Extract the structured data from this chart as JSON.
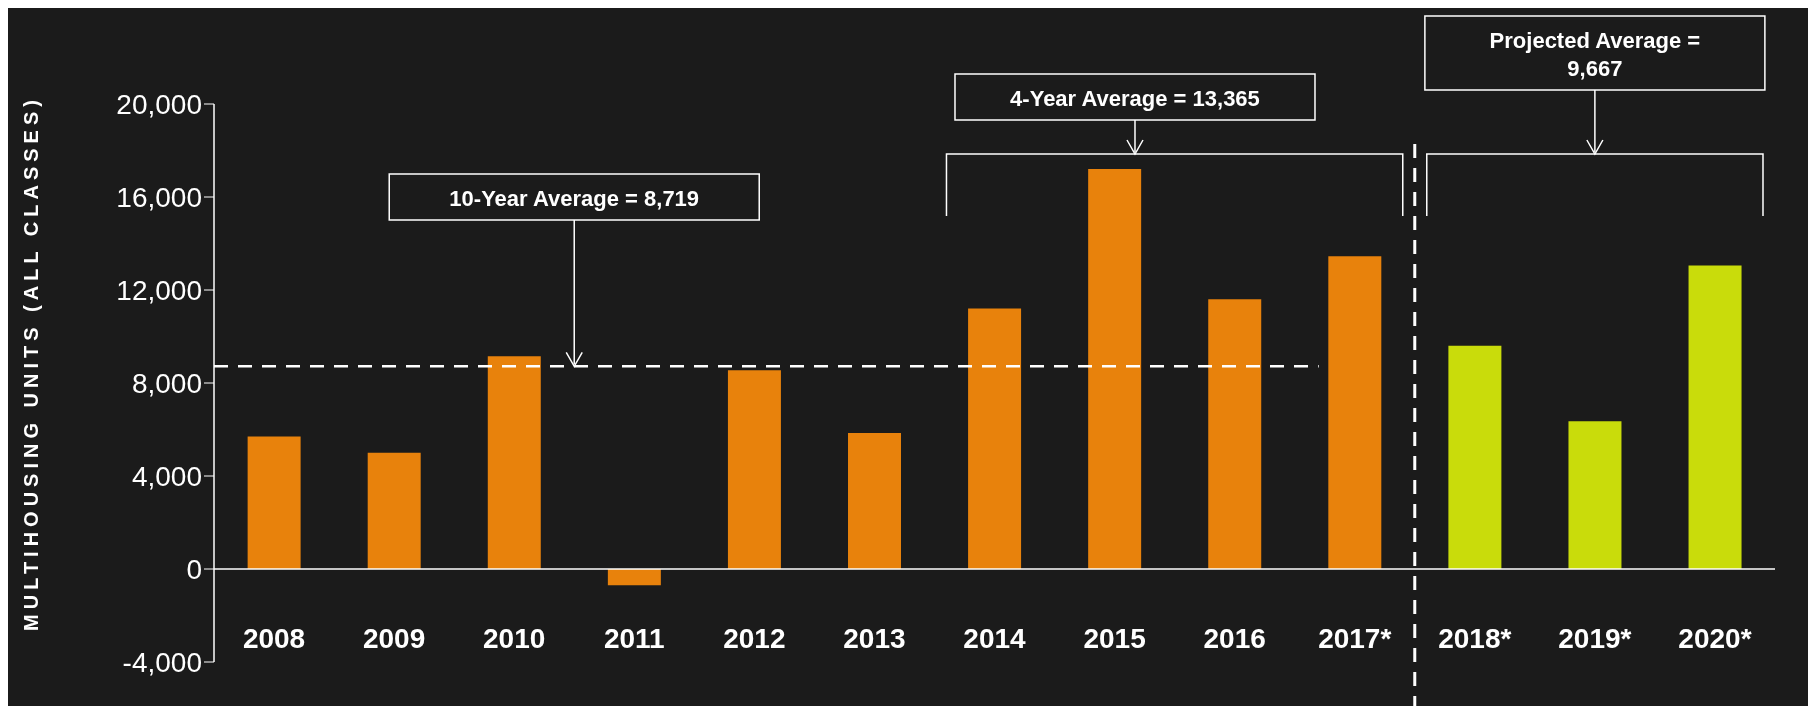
{
  "chart_data": {
    "type": "bar",
    "ylabel": "MULTIHOUSING UNITS (ALL CLASSES)",
    "categories": [
      "2008",
      "2009",
      "2010",
      "2011",
      "2012",
      "2013",
      "2014",
      "2015",
      "2016",
      "2017*",
      "2018*",
      "2019*",
      "2020*"
    ],
    "values": [
      5700,
      5000,
      9150,
      -700,
      8550,
      5850,
      11200,
      17200,
      11600,
      13450,
      9600,
      6350,
      13050
    ],
    "colors": [
      "#e8820c",
      "#e8820c",
      "#e8820c",
      "#e8820c",
      "#e8820c",
      "#e8820c",
      "#e8820c",
      "#e8820c",
      "#e8820c",
      "#e8820c",
      "#c9dc0b",
      "#c9dc0b",
      "#c9dc0b"
    ],
    "ylim": [
      -4000,
      20000
    ],
    "yticks": [
      {
        "value": -4000,
        "label": "-4,000"
      },
      {
        "value": 0,
        "label": "0"
      },
      {
        "value": 4000,
        "label": "4,000"
      },
      {
        "value": 8000,
        "label": "8,000"
      },
      {
        "value": 12000,
        "label": "12,000"
      },
      {
        "value": 16000,
        "label": "16,000"
      },
      {
        "value": 20000,
        "label": "20,000"
      }
    ],
    "ref_lines": [
      {
        "axis": "y",
        "value": 8719,
        "label": "10-Year Average = 8,719",
        "color": "#ffffff",
        "line_style": "dashed"
      }
    ],
    "annotations": [
      "4-Year Average = 13,365",
      "Projected Average = 9,667"
    ]
  }
}
